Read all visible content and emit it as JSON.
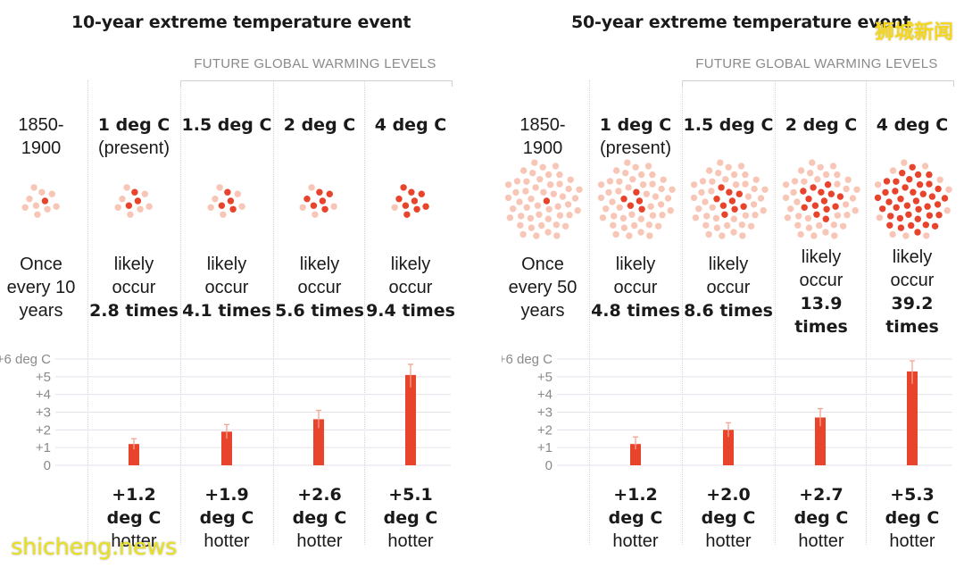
{
  "panels": [
    {
      "title": "10-year extreme temperature event",
      "future_label": "FUTURE GLOBAL WARMING LEVELS",
      "columns": [
        {
          "head_line1": "1850-",
          "head_line2": "1900",
          "freq_line1": "Once",
          "freq_line2": "every 10",
          "freq_line3": "years",
          "hot_value": "",
          "hot_unit": "",
          "hot_word": ""
        },
        {
          "head_line1": "1 deg C",
          "head_line2": "(present)",
          "freq_line1": "likely",
          "freq_line2": "occur",
          "freq_line3": "2.8 times",
          "hot_value": "+1.2",
          "hot_unit": "deg C",
          "hot_word": "hotter"
        },
        {
          "head_line1": "1.5 deg C",
          "head_line2": "",
          "freq_line1": "likely",
          "freq_line2": "occur",
          "freq_line3": "4.1 times",
          "hot_value": "+1.9",
          "hot_unit": "deg C",
          "hot_word": "hotter"
        },
        {
          "head_line1": "2 deg C",
          "head_line2": "",
          "freq_line1": "likely",
          "freq_line2": "occur",
          "freq_line3": "5.6 times",
          "hot_value": "+2.6",
          "hot_unit": "deg C",
          "hot_word": "hotter"
        },
        {
          "head_line1": "4 deg C",
          "head_line2": "",
          "freq_line1": "likely",
          "freq_line2": "occur",
          "freq_line3": "9.4 times",
          "hot_value": "+5.1",
          "hot_unit": "deg C",
          "hot_word": "hotter"
        }
      ]
    },
    {
      "title": "50-year extreme temperature event",
      "future_label": "FUTURE GLOBAL WARMING LEVELS",
      "columns": [
        {
          "head_line1": "1850-",
          "head_line2": "1900",
          "freq_line1": "Once",
          "freq_line2": "every 50",
          "freq_line3": "years",
          "hot_value": "",
          "hot_unit": "",
          "hot_word": ""
        },
        {
          "head_line1": "1 deg C",
          "head_line2": "(present)",
          "freq_line1": "likely",
          "freq_line2": "occur",
          "freq_line3": "4.8 times",
          "hot_value": "+1.2",
          "hot_unit": "deg C",
          "hot_word": "hotter"
        },
        {
          "head_line1": "1.5 deg C",
          "head_line2": "",
          "freq_line1": "likely",
          "freq_line2": "occur",
          "freq_line3": "8.6 times",
          "hot_value": "+2.0",
          "hot_unit": "deg C",
          "hot_word": "hotter"
        },
        {
          "head_line1": "2 deg C",
          "head_line2": "",
          "freq_line1": "likely",
          "freq_line2": "occur",
          "freq_line3": "13.9",
          "freq_line4": "times",
          "hot_value": "+2.7",
          "hot_unit": "deg C",
          "hot_word": "hotter"
        },
        {
          "head_line1": "4 deg C",
          "head_line2": "",
          "freq_line1": "likely",
          "freq_line2": "occur",
          "freq_line3": "39.2",
          "freq_line4": "times",
          "hot_value": "+5.3",
          "hot_unit": "deg C",
          "hot_word": "hotter"
        }
      ]
    }
  ],
  "watermark_top": "狮城新闻",
  "watermark_bottom": "shicheng.news",
  "colors": {
    "event_dot": "#e8432b",
    "base_dot": "#f8c6b6",
    "bar": "#e8432b",
    "error_bar": "#f3a48f",
    "grid": "#e6e0eb",
    "tick_text": "#8a8a8a"
  },
  "chart_data": [
    {
      "type": "bar",
      "title": "10-year extreme temperature event",
      "categories": [
        "1850-1900",
        "1 deg C",
        "1.5 deg C",
        "2 deg C",
        "4 deg C"
      ],
      "values": [
        null,
        1.2,
        1.9,
        2.6,
        5.1
      ],
      "error_low": [
        null,
        0.9,
        1.5,
        2.1,
        4.4
      ],
      "error_high": [
        null,
        1.5,
        2.3,
        3.1,
        5.7
      ],
      "frequency_multiplier": [
        1,
        2.8,
        4.1,
        5.6,
        9.4
      ],
      "event_dots": [
        1,
        3,
        4,
        6,
        9
      ],
      "ylim": [
        0,
        6
      ],
      "yticks": [
        "0",
        "+1",
        "+2",
        "+3",
        "+4",
        "+5",
        "+6 deg C"
      ]
    },
    {
      "type": "bar",
      "title": "50-year extreme temperature event",
      "categories": [
        "1850-1900",
        "1 deg C",
        "1.5 deg C",
        "2 deg C",
        "4 deg C"
      ],
      "values": [
        null,
        1.2,
        2.0,
        2.7,
        5.3
      ],
      "error_low": [
        null,
        0.9,
        1.6,
        2.2,
        4.6
      ],
      "error_high": [
        null,
        1.6,
        2.4,
        3.2,
        5.9
      ],
      "frequency_multiplier": [
        1,
        4.8,
        8.6,
        13.9,
        39.2
      ],
      "event_dots": [
        1,
        5,
        9,
        14,
        39
      ],
      "ylim": [
        0,
        6
      ],
      "yticks": [
        "0",
        "+1",
        "+2",
        "+3",
        "+4",
        "+5",
        "+6 deg C"
      ]
    }
  ]
}
